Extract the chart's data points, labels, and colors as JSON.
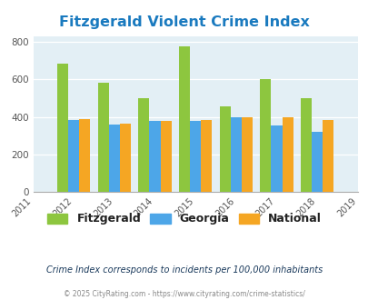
{
  "title": "Fitzgerald Violent Crime Index",
  "years": [
    2011,
    2012,
    2013,
    2014,
    2015,
    2016,
    2017,
    2018,
    2019
  ],
  "data_years": [
    2012,
    2013,
    2014,
    2015,
    2016,
    2017,
    2018
  ],
  "fitzgerald": [
    685,
    580,
    500,
    775,
    455,
    600,
    497
  ],
  "georgia": [
    382,
    360,
    378,
    378,
    398,
    352,
    320
  ],
  "national": [
    387,
    365,
    376,
    383,
    399,
    400,
    383
  ],
  "color_fitzgerald": "#8dc63f",
  "color_georgia": "#4da6e8",
  "color_national": "#f5a623",
  "ylim": [
    0,
    830
  ],
  "yticks": [
    0,
    200,
    400,
    600,
    800
  ],
  "bg_color": "#e3eff5",
  "title_color": "#1a7abf",
  "subtitle": "Crime Index corresponds to incidents per 100,000 inhabitants",
  "footer": "© 2025 CityRating.com - https://www.cityrating.com/crime-statistics/",
  "legend_labels": [
    "Fitzgerald",
    "Georgia",
    "National"
  ],
  "bar_width": 0.27
}
